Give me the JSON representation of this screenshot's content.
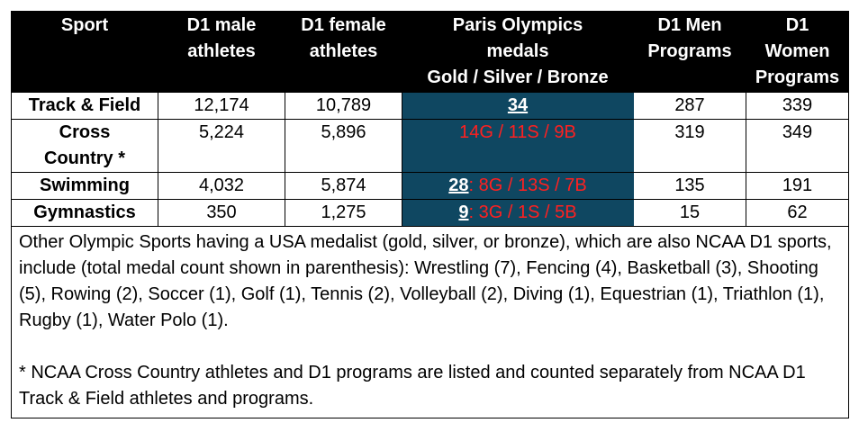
{
  "table": {
    "headers": [
      [
        "Sport"
      ],
      [
        "D1 male",
        "athletes"
      ],
      [
        "D1 female",
        "athletes"
      ],
      [
        "Paris Olympics",
        "medals",
        "Gold / Silver / Bronze"
      ],
      [
        "D1 Men",
        "Programs"
      ],
      [
        "D1",
        "Women",
        "Programs"
      ]
    ],
    "rows": [
      {
        "sport": [
          "Track & Field"
        ],
        "male": "12,174",
        "female": "10,789",
        "medal_total": "34",
        "medal_breakdown": "",
        "men_programs": "287",
        "women_programs": "339"
      },
      {
        "sport": [
          "Cross",
          "Country *"
        ],
        "male": "5,224",
        "female": "5,896",
        "medal_total": "",
        "medal_breakdown": "14G / 11S / 9B",
        "men_programs": "319",
        "women_programs": "349"
      },
      {
        "sport": [
          "Swimming"
        ],
        "male": "4,032",
        "female": "5,874",
        "medal_total": "28",
        "medal_breakdown": ": 8G / 13S / 7B",
        "men_programs": "135",
        "women_programs": "191"
      },
      {
        "sport": [
          "Gymnastics"
        ],
        "male": "350",
        "female": "1,275",
        "medal_total": "9",
        "medal_breakdown": ": 3G / 1S / 5B",
        "men_programs": "15",
        "women_programs": "62"
      }
    ]
  },
  "notes": {
    "paragraph1": "Other Olympic Sports having a USA medalist (gold, silver, or bronze), which are also NCAA D1 sports, include (total medal count shown in parenthesis): Wrestling (7), Fencing (4), Basketball (3), Shooting (5), Rowing (2), Soccer (1), Golf (1), Tennis (2), Volleyball (2), Diving (1), Equestrian (1), Triathlon (1), Rugby (1), Water Polo (1).",
    "paragraph2": "* NCAA Cross Country athletes and D1 programs are listed and counted separately from NCAA D1 Track & Field athletes and programs."
  },
  "colors": {
    "header_bg": "#000000",
    "medal_bg": "#0f4761",
    "medal_text": "#ff2020"
  }
}
